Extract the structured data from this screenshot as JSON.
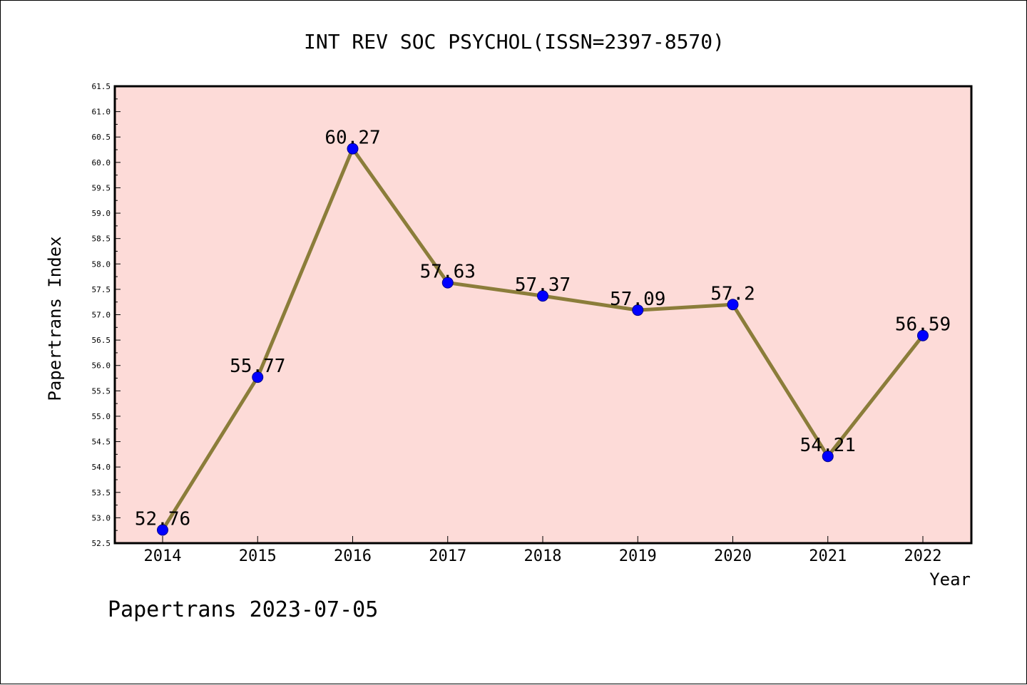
{
  "chart_data": {
    "type": "line",
    "title": "INT REV SOC PSYCHOL(ISSN=2397-8570)",
    "xlabel": "Year",
    "ylabel": "Papertrans Index",
    "categories": [
      "2014",
      "2015",
      "2016",
      "2017",
      "2018",
      "2019",
      "2020",
      "2021",
      "2022"
    ],
    "values": [
      52.76,
      55.77,
      60.27,
      57.63,
      57.37,
      57.09,
      57.2,
      54.21,
      56.59
    ],
    "data_labels": [
      "52.76",
      "55.77",
      "60.27",
      "57.63",
      "57.37",
      "57.09",
      "57.2",
      "54.21",
      "56.59"
    ],
    "ylim": [
      52.5,
      61.5
    ],
    "yticks": [
      "52.5",
      "53.0",
      "53.5",
      "54.0",
      "54.5",
      "55.0",
      "55.5",
      "56.0",
      "56.5",
      "57.0",
      "57.5",
      "58.0",
      "58.5",
      "59.0",
      "59.5",
      "60.0",
      "60.5",
      "61.0",
      "61.5"
    ],
    "grid": false,
    "legend": "none",
    "colors": {
      "plot_background": "#fddbd8",
      "line": "#8b7d3a",
      "marker": "#0000ff",
      "marker_edge": "#00008b"
    }
  },
  "footer": {
    "watermark": "Papertrans 2023-07-05"
  }
}
